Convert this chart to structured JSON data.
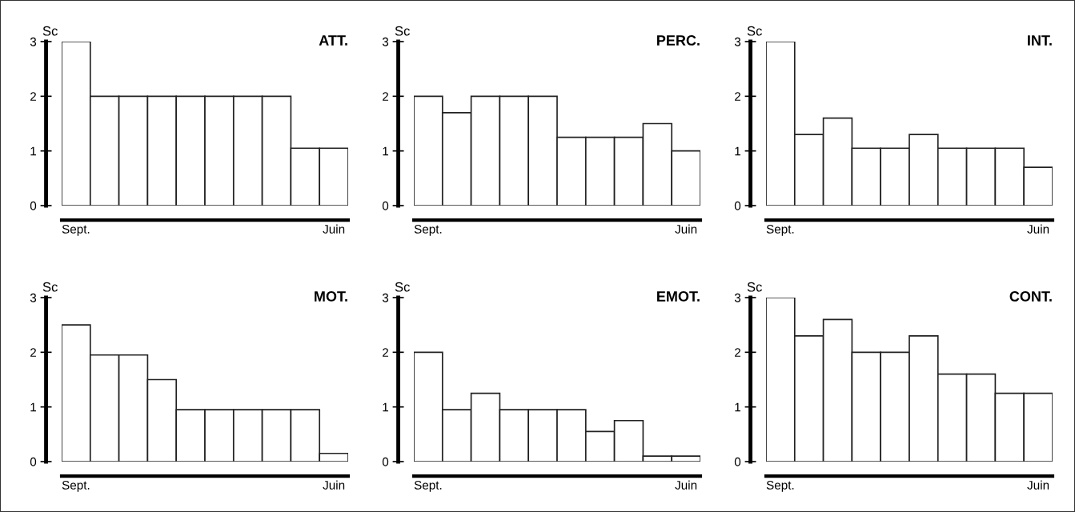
{
  "chart_data": [
    {
      "type": "bar",
      "title": "ATT.",
      "ylabel": "Sc",
      "categories": [
        "Sept.",
        null,
        null,
        null,
        null,
        null,
        null,
        null,
        null,
        "Juin"
      ],
      "values": [
        3,
        2,
        2,
        2,
        2,
        2,
        2,
        2,
        1.05,
        1.05
      ],
      "color": "#ffffff",
      "ylim": [
        0,
        3
      ],
      "yticks": [
        0,
        1,
        2,
        3
      ]
    },
    {
      "type": "bar",
      "title": "PERC.",
      "ylabel": "Sc",
      "categories": [
        "Sept.",
        null,
        null,
        null,
        null,
        null,
        null,
        null,
        null,
        "Juin"
      ],
      "values": [
        2,
        1.7,
        2,
        2,
        2,
        1.25,
        1.25,
        1.25,
        1.5,
        1
      ],
      "color": "#ffffff",
      "ylim": [
        0,
        3
      ],
      "yticks": [
        0,
        1,
        2,
        3
      ]
    },
    {
      "type": "bar",
      "title": "INT.",
      "ylabel": "Sc",
      "categories": [
        "Sept.",
        null,
        null,
        null,
        null,
        null,
        null,
        null,
        null,
        "Juin"
      ],
      "values": [
        3,
        1.3,
        1.6,
        1.05,
        1.05,
        1.3,
        1.05,
        1.05,
        1.05,
        0.7
      ],
      "color": "#ffffff",
      "ylim": [
        0,
        3
      ],
      "yticks": [
        0,
        1,
        2,
        3
      ]
    },
    {
      "type": "bar",
      "title": "MOT.",
      "ylabel": "Sc",
      "categories": [
        "Sept.",
        null,
        null,
        null,
        null,
        null,
        null,
        null,
        null,
        "Juin"
      ],
      "values": [
        2.5,
        1.95,
        1.95,
        1.5,
        0.95,
        0.95,
        0.95,
        0.95,
        0.95,
        0.15
      ],
      "color": "#ffffff",
      "ylim": [
        0,
        3
      ],
      "yticks": [
        0,
        1,
        2,
        3
      ]
    },
    {
      "type": "bar",
      "title": "EMOT.",
      "ylabel": "Sc",
      "categories": [
        "Sept.",
        null,
        null,
        null,
        null,
        null,
        null,
        null,
        null,
        "Juin"
      ],
      "values": [
        2,
        0.95,
        1.25,
        0.95,
        0.95,
        0.95,
        0.55,
        0.75,
        0.1,
        0.1
      ],
      "color": "#ffffff",
      "ylim": [
        0,
        3
      ],
      "yticks": [
        0,
        1,
        2,
        3
      ]
    },
    {
      "type": "bar",
      "title": "CONT.",
      "ylabel": "Sc",
      "categories": [
        "Sept.",
        null,
        null,
        null,
        null,
        null,
        null,
        null,
        null,
        "Juin"
      ],
      "values": [
        3,
        2.3,
        2.6,
        2,
        2,
        2.3,
        1.6,
        1.6,
        1.25,
        1.25
      ],
      "color": "#ffffff",
      "ylim": [
        0,
        3
      ],
      "yticks": [
        0,
        1,
        2,
        3
      ]
    }
  ]
}
